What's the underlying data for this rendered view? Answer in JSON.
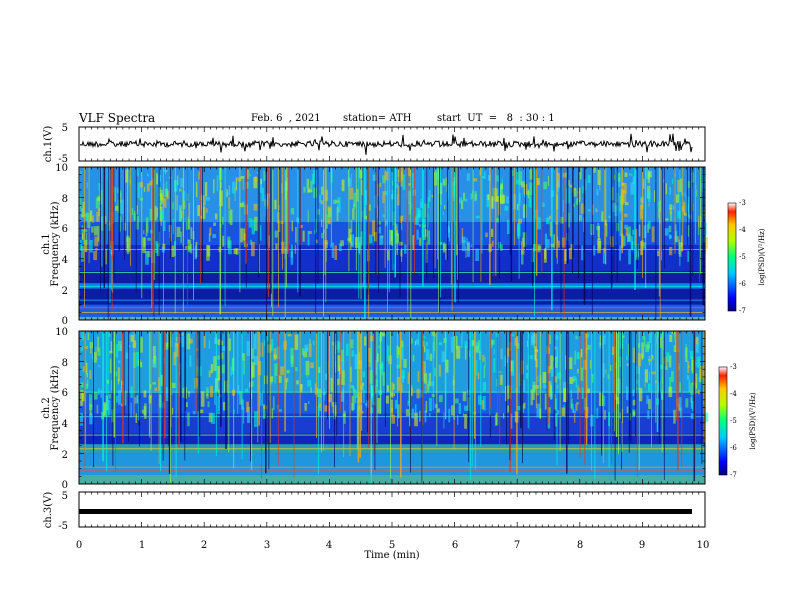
{
  "header": {
    "title": "VLF Spectra",
    "date": "Feb. 6  , 2021",
    "station": "station= ATH",
    "start": "start  UT  =   8  : 30 : 1"
  },
  "chart_data": [
    {
      "type": "line",
      "name": "ch1-waveform",
      "ylabel": "ch.1(V)",
      "ylim": [
        -5,
        5
      ],
      "yticks": [
        "5",
        "-5"
      ],
      "xlim": [
        0,
        10
      ],
      "baseline_value": 0
    },
    {
      "type": "heatmap",
      "name": "ch1-spectrogram",
      "ylabel": "ch.1\nFrequency (kHz)",
      "ylabel_line1": "ch.1",
      "ylabel_line2": "Frequency (kHz)",
      "ylim": [
        0,
        10
      ],
      "yticks": [
        "0",
        "2",
        "4",
        "6",
        "8",
        "10"
      ],
      "xlim": [
        0,
        10
      ],
      "colorbar": {
        "label": "log(PSD)(V²/Hz)",
        "range": [
          -7,
          -3
        ],
        "ticks": [
          "-3",
          "-4",
          "-5",
          "-6",
          "-7"
        ]
      }
    },
    {
      "type": "heatmap",
      "name": "ch2-spectrogram",
      "ylabel_line1": "ch.2",
      "ylabel_line2": "Frequency (kHz)",
      "ylim": [
        0,
        10
      ],
      "yticks": [
        "0",
        "2",
        "4",
        "6",
        "8",
        "10"
      ],
      "xlim": [
        0,
        10
      ],
      "colorbar": {
        "label": "log(PSD)(V²/Hz)",
        "range": [
          -7,
          -3
        ],
        "ticks": [
          "-3",
          "-4",
          "-5",
          "-6",
          "-7"
        ]
      }
    },
    {
      "type": "line",
      "name": "ch3-waveform",
      "ylabel": "ch.3(V)",
      "ylim": [
        -5,
        5
      ],
      "yticks": [
        "5",
        "-5"
      ],
      "xlim": [
        0,
        10
      ],
      "baseline_value": 0
    }
  ],
  "xaxis": {
    "label": "Time  (min)",
    "ticks": [
      "0",
      "1",
      "2",
      "3",
      "4",
      "5",
      "6",
      "7",
      "8",
      "9",
      "10"
    ]
  },
  "colors": {
    "frame": "#000000",
    "trace": "#000000"
  }
}
